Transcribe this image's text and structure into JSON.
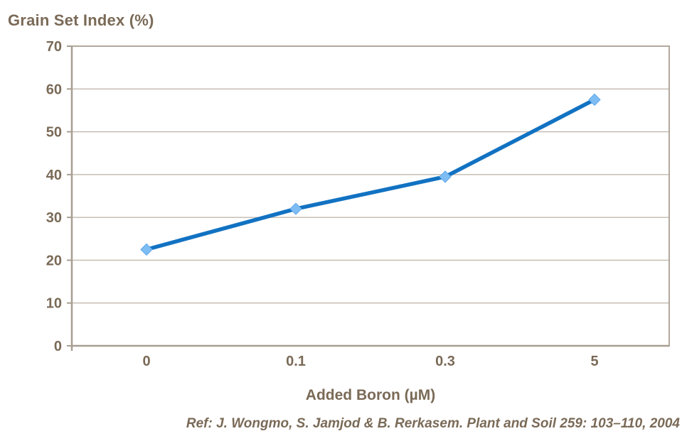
{
  "reference": "Ref: J. Wongmo, S. Jamjod & B. Rerkasem. Plant and Soil 259: 103–110, 2004",
  "colors": {
    "background": "#FFFFFF",
    "text": "#7A6A57",
    "axis": "#A89E91",
    "border": "#B2A89C",
    "gridline": "#C2B9AE",
    "line": "#1272C2",
    "marker_fill": "#7EBDF4",
    "marker_edge": "#5FA8EA"
  },
  "chart_data": {
    "type": "line",
    "title": "Grain Set Index (%)",
    "xlabel": "Added Boron (µM)",
    "ylabel": "",
    "categories": [
      "0",
      "0.1",
      "0.3",
      "5"
    ],
    "series": [
      {
        "name": "Grain Set Index",
        "values": [
          22.5,
          32,
          39.5,
          57.5
        ]
      }
    ],
    "ylim": [
      0,
      70
    ],
    "yticks": [
      0,
      10,
      20,
      30,
      40,
      50,
      60,
      70
    ],
    "grid": "horizontal",
    "legend": "none",
    "marker": "diamond"
  }
}
